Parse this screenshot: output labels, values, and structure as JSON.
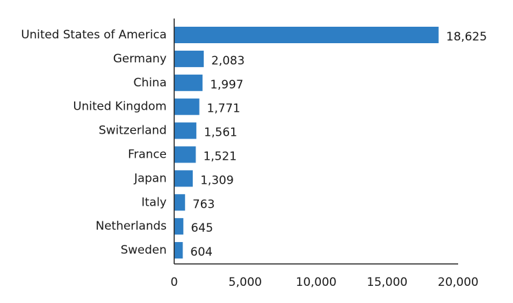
{
  "chart_data": {
    "type": "bar",
    "orientation": "horizontal",
    "title": "",
    "xlabel": "",
    "ylabel": "",
    "categories": [
      "United States of America",
      "Germany",
      "China",
      "United Kingdom",
      "Switzerland",
      "France",
      "Japan",
      "Italy",
      "Netherlands",
      "Sweden"
    ],
    "values": [
      18625,
      2083,
      1997,
      1771,
      1561,
      1521,
      1309,
      763,
      645,
      604
    ],
    "value_labels": [
      "18,625",
      "2,083",
      "1,997",
      "1,771",
      "1,561",
      "1,521",
      "1,309",
      "763",
      "645",
      "604"
    ],
    "xlim": [
      0,
      20000
    ],
    "x_ticks": [
      0,
      5000,
      10000,
      15000,
      20000
    ],
    "x_tick_labels": [
      "0",
      "5,000",
      "10,000",
      "15,000",
      "20,000"
    ],
    "grid": false,
    "legend": "none",
    "bar_color": "#2e7ec4"
  }
}
